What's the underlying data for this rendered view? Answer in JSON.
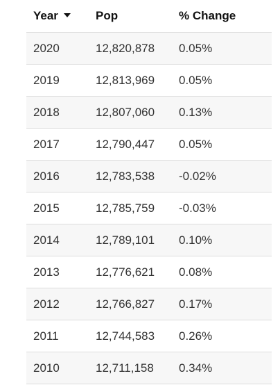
{
  "table": {
    "headers": {
      "year": "Year",
      "pop": "Pop",
      "change": "% Change"
    },
    "sort_icon": "sort-desc-caret-icon",
    "rows": [
      {
        "year": "2020",
        "pop": "12,820,878",
        "change": "0.05%"
      },
      {
        "year": "2019",
        "pop": "12,813,969",
        "change": "0.05%"
      },
      {
        "year": "2018",
        "pop": "12,807,060",
        "change": "0.13%"
      },
      {
        "year": "2017",
        "pop": "12,790,447",
        "change": "0.05%"
      },
      {
        "year": "2016",
        "pop": "12,783,538",
        "change": "-0.02%"
      },
      {
        "year": "2015",
        "pop": "12,785,759",
        "change": "-0.03%"
      },
      {
        "year": "2014",
        "pop": "12,789,101",
        "change": "0.10%"
      },
      {
        "year": "2013",
        "pop": "12,776,621",
        "change": "0.08%"
      },
      {
        "year": "2012",
        "pop": "12,766,827",
        "change": "0.17%"
      },
      {
        "year": "2011",
        "pop": "12,744,583",
        "change": "0.26%"
      },
      {
        "year": "2010",
        "pop": "12,711,158",
        "change": "0.34%"
      }
    ]
  }
}
